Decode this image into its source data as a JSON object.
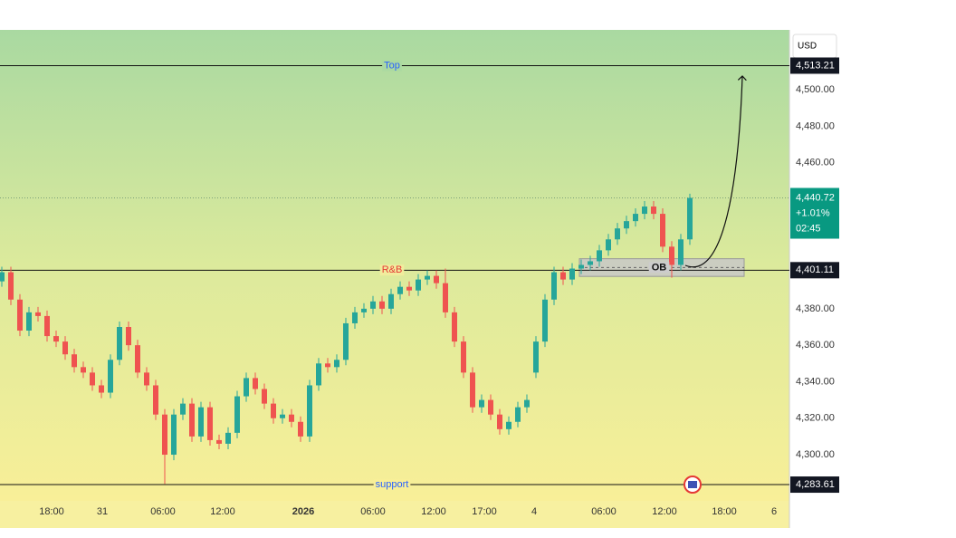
{
  "chart_data": {
    "type": "candlestick",
    "currency": "USD",
    "up_color": "#26a69a",
    "down_color": "#ef5350",
    "grid": false,
    "xlim": [
      -0.2,
      87
    ],
    "xticks": [
      {
        "value": 5.5,
        "label": "18:00"
      },
      {
        "value": 11.1,
        "label": "31"
      },
      {
        "value": 17.8,
        "label": "06:00"
      },
      {
        "value": 24.4,
        "label": "12:00"
      },
      {
        "value": 33.3,
        "label": "2026"
      },
      {
        "value": 41.0,
        "label": "06:00"
      },
      {
        "value": 47.7,
        "label": "12:00"
      },
      {
        "value": 53.3,
        "label": "17:00"
      },
      {
        "value": 58.8,
        "label": "4"
      },
      {
        "value": 66.5,
        "label": "06:00"
      },
      {
        "value": 73.2,
        "label": "12:00"
      },
      {
        "value": 79.8,
        "label": "18:00"
      },
      {
        "value": 85.3,
        "label": "6"
      }
    ],
    "ylim": [
      4274.7,
      4532.8
    ],
    "yticks": [
      {
        "value": 4300,
        "label": "4,300.00"
      },
      {
        "value": 4320,
        "label": "4,320.00"
      },
      {
        "value": 4340,
        "label": "4,340.00"
      },
      {
        "value": 4360,
        "label": "4,360.00"
      },
      {
        "value": 4380,
        "label": "4,380.00"
      },
      {
        "value": 4460,
        "label": "4,460.00"
      },
      {
        "value": 4480,
        "label": "4,480.00"
      },
      {
        "value": 4500,
        "label": "4,500.00"
      }
    ],
    "x": [
      0,
      1,
      2,
      3,
      4,
      5,
      6,
      7,
      8,
      9,
      10,
      11,
      12,
      13,
      14,
      15,
      16,
      17,
      18,
      19,
      20,
      21,
      22,
      23,
      24,
      25,
      26,
      27,
      28,
      29,
      30,
      31,
      32,
      33,
      34,
      35,
      36,
      37,
      38,
      39,
      40,
      41,
      42,
      43,
      44,
      45,
      46,
      47,
      48,
      49,
      50,
      51,
      52,
      53,
      54,
      55,
      56,
      57,
      58,
      59,
      60,
      61,
      62,
      63,
      64,
      65,
      66,
      67,
      68,
      69,
      70,
      71,
      72,
      73,
      74,
      75,
      76
    ],
    "open": [
      4395,
      4400,
      4385,
      4368,
      4378,
      4376,
      4365,
      4362,
      4355,
      4348,
      4345,
      4338,
      4334,
      4352,
      4370,
      4360,
      4345,
      4338,
      4322,
      4300,
      4322,
      4328,
      4310,
      4326,
      4308,
      4306,
      4312,
      4332,
      4342,
      4336,
      4328,
      4320,
      4322,
      4318,
      4310,
      4338,
      4350,
      4348,
      4352,
      4372,
      4378,
      4380,
      4384,
      4380,
      4388,
      4392,
      4390,
      4396,
      4398,
      4394,
      4378,
      4362,
      4345,
      4326,
      4330,
      4322,
      4314,
      4318,
      4326,
      4345,
      4362,
      4385,
      4400,
      4396,
      4402,
      4404,
      4406,
      4412,
      4418,
      4424,
      4428,
      4432,
      4436,
      4432,
      4414,
      4404,
      4418
    ],
    "high": [
      4403,
      4403,
      4388,
      4381,
      4381,
      4379,
      4368,
      4365,
      4358,
      4351,
      4348,
      4341,
      4355,
      4373,
      4373,
      4363,
      4348,
      4341,
      4325,
      4325,
      4331,
      4331,
      4329,
      4329,
      4311,
      4315,
      4335,
      4345,
      4345,
      4339,
      4331,
      4325,
      4325,
      4321,
      4341,
      4353,
      4353,
      4355,
      4375,
      4381,
      4383,
      4387,
      4387,
      4391,
      4395,
      4395,
      4399,
      4401,
      4401,
      4402,
      4381,
      4365,
      4348,
      4333,
      4333,
      4325,
      4321,
      4329,
      4333,
      4365,
      4388,
      4403,
      4403,
      4405,
      4407,
      4409,
      4415,
      4421,
      4427,
      4431,
      4435,
      4439,
      4439,
      4435,
      4417,
      4421,
      4443
    ],
    "low": [
      4392,
      4382,
      4365,
      4365,
      4373,
      4362,
      4359,
      4352,
      4345,
      4342,
      4335,
      4331,
      4331,
      4349,
      4357,
      4342,
      4335,
      4319,
      4284,
      4297,
      4319,
      4307,
      4307,
      4305,
      4303,
      4303,
      4309,
      4329,
      4333,
      4325,
      4317,
      4317,
      4315,
      4307,
      4307,
      4335,
      4345,
      4345,
      4349,
      4369,
      4375,
      4377,
      4377,
      4377,
      4385,
      4387,
      4387,
      4393,
      4391,
      4375,
      4359,
      4342,
      4323,
      4323,
      4319,
      4311,
      4311,
      4315,
      4323,
      4342,
      4359,
      4382,
      4393,
      4393,
      4399,
      4401,
      4403,
      4409,
      4415,
      4421,
      4425,
      4429,
      4429,
      4411,
      4397,
      4401,
      4415
    ],
    "close": [
      4400,
      4385,
      4368,
      4378,
      4376,
      4365,
      4362,
      4355,
      4348,
      4345,
      4338,
      4334,
      4352,
      4370,
      4360,
      4345,
      4338,
      4322,
      4300,
      4322,
      4328,
      4310,
      4326,
      4308,
      4306,
      4312,
      4332,
      4342,
      4336,
      4328,
      4320,
      4322,
      4318,
      4310,
      4338,
      4350,
      4348,
      4352,
      4372,
      4378,
      4380,
      4384,
      4380,
      4388,
      4392,
      4390,
      4396,
      4398,
      4394,
      4378,
      4362,
      4345,
      4326,
      4330,
      4322,
      4314,
      4318,
      4326,
      4330,
      4362,
      4385,
      4400,
      4396,
      4402,
      4404,
      4406,
      4412,
      4418,
      4424,
      4428,
      4432,
      4436,
      4432,
      4414,
      4404,
      4418,
      4440.72
    ],
    "levels": [
      {
        "label": "Top",
        "value": 4513.21,
        "price_label": "4,513.21",
        "color": "#2962ff"
      },
      {
        "label": "R&B",
        "value": 4401.11,
        "price_label": "4,401.11",
        "color": "#e53935"
      },
      {
        "label": "support",
        "value": 4283.61,
        "price_label": "4,283.61",
        "color": "#2962ff"
      }
    ],
    "current": {
      "value": 4440.72,
      "label": "4,440.72",
      "change": "+1.01%",
      "countdown": "02:45",
      "color": "#089981"
    },
    "ob_zone": {
      "label": "OB",
      "low": 4397.7,
      "high": 4407.4
    }
  }
}
